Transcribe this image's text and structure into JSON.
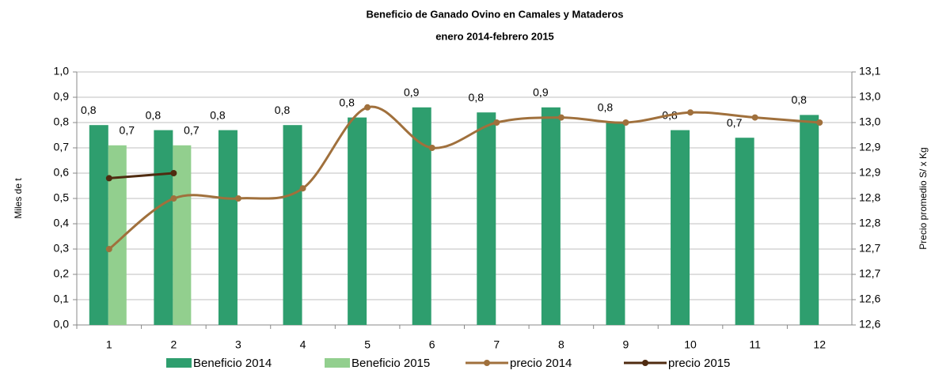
{
  "chart_data": {
    "type": "bar_line",
    "title": "Beneficio de Ganado Ovino en Camales y Mataderos",
    "subtitle": "enero 2014-febrero 2015",
    "y_label": "Miles de t",
    "y2_label": "Precio promedio S/ x Kg",
    "categories": [
      "1",
      "2",
      "3",
      "4",
      "5",
      "6",
      "7",
      "8",
      "9",
      "10",
      "11",
      "12"
    ],
    "ylim": [
      0,
      1
    ],
    "yticks": [
      {
        "value": 0,
        "label": "0,0"
      },
      {
        "value": 0.1,
        "label": "0,1"
      },
      {
        "value": 0.2,
        "label": "0,2"
      },
      {
        "value": 0.3,
        "label": "0,3"
      },
      {
        "value": 0.4,
        "label": "0,4"
      },
      {
        "value": 0.5,
        "label": "0,5"
      },
      {
        "value": 0.6,
        "label": "0,6"
      },
      {
        "value": 0.7,
        "label": "0,7"
      },
      {
        "value": 0.8,
        "label": "0,8"
      },
      {
        "value": 0.9,
        "label": "0,9"
      },
      {
        "value": 1,
        "label": "1,0"
      }
    ],
    "y2lim": [
      12.55,
      13.05
    ],
    "y2ticks": [
      {
        "value": 12.55,
        "label": "12,6"
      },
      {
        "value": 12.6,
        "label": "12,6"
      },
      {
        "value": 12.65,
        "label": "12,7"
      },
      {
        "value": 12.7,
        "label": "12,7"
      },
      {
        "value": 12.75,
        "label": "12,8"
      },
      {
        "value": 12.8,
        "label": "12,8"
      },
      {
        "value": 12.85,
        "label": "12,9"
      },
      {
        "value": 12.9,
        "label": "12,9"
      },
      {
        "value": 12.95,
        "label": "13,0"
      },
      {
        "value": 13.0,
        "label": "13,0"
      },
      {
        "value": 13.05,
        "label": "13,1"
      }
    ],
    "grid": true,
    "series": [
      {
        "name": "Beneficio 2014",
        "type": "bar",
        "color": "#2e9e6e",
        "values": [
          0.79,
          0.77,
          0.77,
          0.79,
          0.82,
          0.86,
          0.84,
          0.86,
          0.8,
          0.77,
          0.74,
          0.83
        ],
        "value_labels": [
          "0,8",
          "0,8",
          "0,8",
          "0,8",
          "0,8",
          "0,9",
          "0,8",
          "0,9",
          "0,8",
          "0,8",
          "0,7",
          "0,8"
        ]
      },
      {
        "name": "Beneficio 2015",
        "type": "bar",
        "color": "#92cf8e",
        "values": [
          0.71,
          0.71,
          null,
          null,
          null,
          null,
          null,
          null,
          null,
          null,
          null,
          null
        ],
        "value_labels": [
          "0,7",
          "0,7",
          null,
          null,
          null,
          null,
          null,
          null,
          null,
          null,
          null,
          null
        ]
      },
      {
        "name": "precio 2014",
        "type": "line",
        "axis": "y2",
        "color": "#a0703c",
        "values": [
          12.7,
          12.8,
          12.8,
          12.82,
          12.98,
          12.9,
          12.95,
          12.96,
          12.95,
          12.97,
          12.96,
          12.95
        ]
      },
      {
        "name": "precio 2015",
        "type": "line",
        "axis": "y2",
        "color": "#4f2b10",
        "values": [
          12.84,
          12.85,
          null,
          null,
          null,
          null,
          null,
          null,
          null,
          null,
          null,
          null
        ]
      }
    ]
  }
}
